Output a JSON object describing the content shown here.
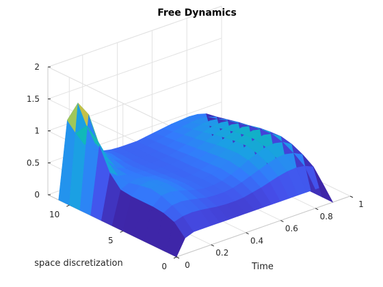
{
  "chart_data": {
    "type": "surface",
    "title": "Free Dynamics",
    "xlabel": "Time",
    "ylabel": "space discretization",
    "zlabel": "",
    "xlim": [
      0,
      1
    ],
    "ylim": [
      0,
      12
    ],
    "zlim": [
      0,
      2
    ],
    "x_ticks": [
      0,
      0.2,
      0.4,
      0.6,
      0.8,
      1
    ],
    "x_tick_labels": [
      "0",
      "0.2",
      "0.4",
      "0.6",
      "0.8",
      "1"
    ],
    "y_ticks": [
      0,
      5,
      10
    ],
    "y_tick_labels": [
      "0",
      "5",
      "10"
    ],
    "z_ticks": [
      0,
      0.5,
      1,
      1.5,
      2
    ],
    "z_tick_labels": [
      "0",
      "0.5",
      "1",
      "1.5",
      "2"
    ],
    "grid": true,
    "colormap": "parula",
    "t": [
      0,
      0.05,
      0.1,
      0.15,
      0.2,
      0.25,
      0.3,
      0.35,
      0.4,
      0.45,
      0.5,
      0.55,
      0.6,
      0.65,
      0.7,
      0.75,
      0.8,
      0.85,
      0.9
    ],
    "space": [
      0,
      1,
      2,
      3,
      4,
      5,
      6,
      7,
      8,
      9,
      10,
      11
    ],
    "z": [
      [
        0.0,
        0.25,
        0.3,
        0.3,
        0.3,
        0.3,
        0.3,
        0.3,
        0.3,
        0.3,
        0.3,
        0.3,
        0.3,
        0.3,
        0.3,
        0.3,
        0.3,
        0.3,
        0.0
      ],
      [
        0.0,
        0.42,
        0.46,
        0.47,
        0.46,
        0.44,
        0.42,
        0.41,
        0.41,
        0.42,
        0.45,
        0.48,
        0.52,
        0.56,
        0.59,
        0.6,
        0.58,
        0.52,
        0.0
      ],
      [
        0.0,
        0.48,
        0.55,
        0.56,
        0.54,
        0.51,
        0.48,
        0.47,
        0.47,
        0.49,
        0.53,
        0.58,
        0.63,
        0.68,
        0.72,
        0.73,
        0.7,
        0.63,
        0.0
      ],
      [
        0.0,
        0.5,
        0.62,
        0.63,
        0.6,
        0.56,
        0.52,
        0.5,
        0.5,
        0.52,
        0.57,
        0.63,
        0.7,
        0.76,
        0.81,
        0.82,
        0.79,
        0.71,
        0.0
      ],
      [
        0.0,
        0.5,
        0.65,
        0.66,
        0.63,
        0.58,
        0.54,
        0.51,
        0.51,
        0.54,
        0.59,
        0.66,
        0.73,
        0.8,
        0.85,
        0.87,
        0.84,
        0.75,
        0.0
      ],
      [
        0.0,
        0.5,
        0.62,
        0.64,
        0.61,
        0.57,
        0.53,
        0.5,
        0.5,
        0.53,
        0.58,
        0.65,
        0.72,
        0.79,
        0.84,
        0.86,
        0.83,
        0.74,
        0.0
      ],
      [
        0.0,
        0.52,
        0.58,
        0.6,
        0.58,
        0.55,
        0.52,
        0.5,
        0.5,
        0.52,
        0.57,
        0.63,
        0.7,
        0.76,
        0.81,
        0.83,
        0.8,
        0.72,
        0.0
      ],
      [
        0.0,
        0.7,
        0.6,
        0.58,
        0.56,
        0.54,
        0.51,
        0.5,
        0.5,
        0.52,
        0.56,
        0.61,
        0.67,
        0.73,
        0.77,
        0.79,
        0.76,
        0.68,
        0.0
      ],
      [
        0.0,
        1.05,
        0.75,
        0.6,
        0.55,
        0.52,
        0.5,
        0.49,
        0.49,
        0.51,
        0.54,
        0.59,
        0.64,
        0.69,
        0.73,
        0.74,
        0.72,
        0.65,
        0.0
      ],
      [
        0.0,
        1.45,
        1.0,
        0.72,
        0.6,
        0.53,
        0.5,
        0.49,
        0.49,
        0.5,
        0.53,
        0.57,
        0.61,
        0.65,
        0.68,
        0.69,
        0.67,
        0.61,
        0.0
      ],
      [
        0.0,
        1.55,
        1.15,
        0.82,
        0.65,
        0.56,
        0.51,
        0.49,
        0.49,
        0.5,
        0.52,
        0.55,
        0.58,
        0.61,
        0.63,
        0.64,
        0.62,
        0.57,
        0.0
      ],
      [
        0.0,
        1.2,
        0.95,
        0.72,
        0.6,
        0.53,
        0.5,
        0.49,
        0.49,
        0.49,
        0.51,
        0.53,
        0.55,
        0.57,
        0.58,
        0.59,
        0.58,
        0.54,
        0.0
      ]
    ]
  }
}
